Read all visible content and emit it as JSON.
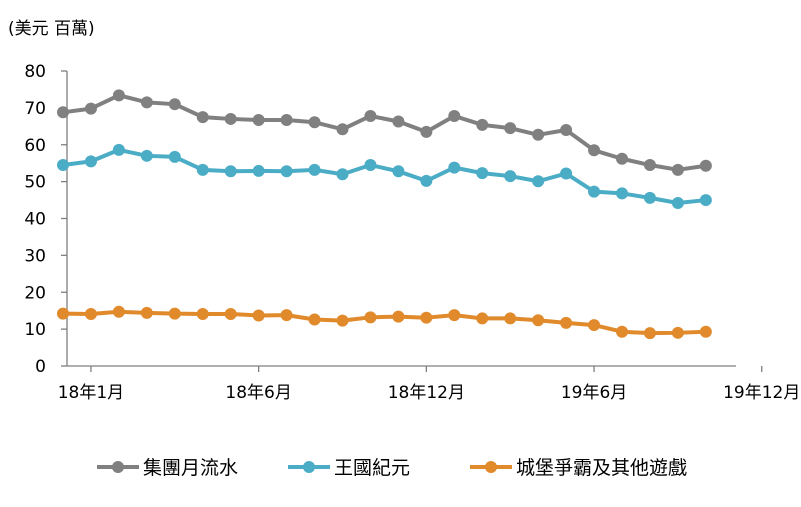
{
  "chart_data": {
    "type": "line",
    "unit_label": "(美元 百萬)",
    "x_tick_labels": [
      "18年1月",
      "18年6月",
      "18年12月",
      "19年6月",
      "19年12月"
    ],
    "y_ticks": [
      0,
      10,
      20,
      30,
      40,
      50,
      60,
      70,
      80
    ],
    "ylim": [
      0,
      80
    ],
    "grid": false,
    "legend_position": "bottom",
    "series": [
      {
        "name": "集團月流水",
        "color": "#808080",
        "values": [
          68.8,
          69.8,
          73.4,
          71.5,
          71.0,
          67.5,
          67.0,
          66.7,
          66.7,
          66.1,
          64.2,
          67.8,
          66.3,
          63.5,
          67.8,
          65.4,
          64.5,
          62.7,
          64.0,
          58.5,
          56.2,
          54.5,
          53.2,
          54.3
        ]
      },
      {
        "name": "王國紀元",
        "color": "#4bacc6",
        "values": [
          54.5,
          55.5,
          58.6,
          57.0,
          56.7,
          53.2,
          52.8,
          52.9,
          52.8,
          53.2,
          52.0,
          54.5,
          52.8,
          50.2,
          53.8,
          52.3,
          51.5,
          50.1,
          52.2,
          47.3,
          46.8,
          45.6,
          44.2,
          45.0
        ]
      },
      {
        "name": "城堡爭霸及其他遊戲",
        "color": "#e08a2b",
        "values": [
          14.2,
          14.1,
          14.7,
          14.4,
          14.2,
          14.1,
          14.1,
          13.7,
          13.8,
          12.6,
          12.3,
          13.2,
          13.4,
          13.1,
          13.8,
          12.9,
          12.9,
          12.4,
          11.7,
          11.1,
          9.3,
          8.9,
          9.0,
          9.3
        ]
      }
    ]
  }
}
